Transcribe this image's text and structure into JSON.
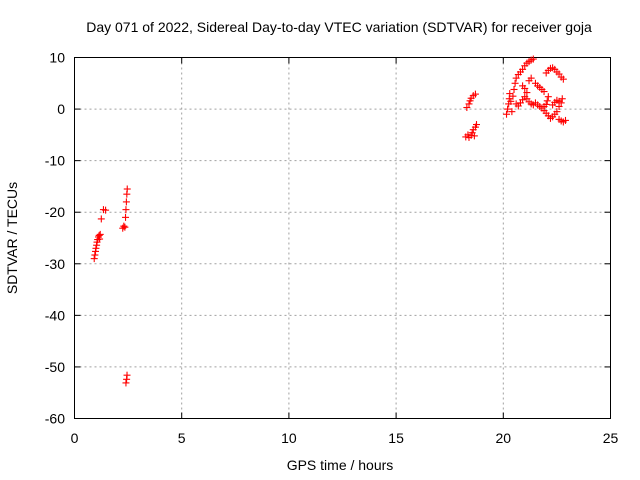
{
  "chart_data": {
    "type": "scatter",
    "title": "Day 071 of 2022, Sidereal Day-to-day VTEC variation (SDTVAR) for receiver goja",
    "xlabel": "GPS time / hours",
    "ylabel": "SDTVAR / TECUs",
    "xlim": [
      0,
      25
    ],
    "ylim": [
      -60,
      10
    ],
    "xticks": [
      0,
      5,
      10,
      15,
      20,
      25
    ],
    "yticks": [
      -60,
      -50,
      -40,
      -30,
      -20,
      -10,
      0,
      10
    ],
    "grid": true,
    "marker": "plus",
    "color": "#ff0000",
    "series": [
      {
        "name": "SDTVAR",
        "points": [
          [
            0.92,
            -29.0
          ],
          [
            0.95,
            -28.3
          ],
          [
            0.98,
            -27.6
          ],
          [
            1.0,
            -27.0
          ],
          [
            1.03,
            -26.4
          ],
          [
            1.05,
            -25.8
          ],
          [
            1.08,
            -25.3
          ],
          [
            1.12,
            -24.8
          ],
          [
            1.15,
            -24.5
          ],
          [
            1.17,
            -25.2
          ],
          [
            1.2,
            -24.3
          ],
          [
            1.25,
            -21.3
          ],
          [
            1.35,
            -19.5
          ],
          [
            1.45,
            -19.6
          ],
          [
            2.25,
            -23.1
          ],
          [
            2.3,
            -22.7
          ],
          [
            2.35,
            -22.9
          ],
          [
            2.38,
            -21.0
          ],
          [
            2.4,
            -19.5
          ],
          [
            2.42,
            -18.0
          ],
          [
            2.44,
            -16.5
          ],
          [
            2.46,
            -15.5
          ],
          [
            2.4,
            -53.1
          ],
          [
            2.43,
            -52.4
          ],
          [
            2.45,
            -51.6
          ],
          [
            18.25,
            -5.4
          ],
          [
            18.35,
            -5.0
          ],
          [
            18.4,
            -5.5
          ],
          [
            18.5,
            -5.1
          ],
          [
            18.55,
            -4.6
          ],
          [
            18.6,
            -4.0
          ],
          [
            18.65,
            -5.2
          ],
          [
            18.7,
            -3.5
          ],
          [
            18.75,
            -3.0
          ],
          [
            18.3,
            0.3
          ],
          [
            18.4,
            1.0
          ],
          [
            18.45,
            1.6
          ],
          [
            18.5,
            2.1
          ],
          [
            18.6,
            2.6
          ],
          [
            18.7,
            2.9
          ],
          [
            20.15,
            -1.0
          ],
          [
            20.2,
            0.0
          ],
          [
            20.25,
            1.0
          ],
          [
            20.28,
            2.0
          ],
          [
            20.3,
            3.0
          ],
          [
            20.35,
            1.5
          ],
          [
            20.4,
            -0.5
          ],
          [
            20.45,
            2.5
          ],
          [
            20.5,
            3.8
          ],
          [
            20.55,
            5.0
          ],
          [
            20.6,
            6.0
          ],
          [
            20.7,
            6.7
          ],
          [
            20.8,
            7.2
          ],
          [
            20.9,
            7.7
          ],
          [
            21.0,
            8.4
          ],
          [
            21.1,
            8.9
          ],
          [
            21.2,
            9.2
          ],
          [
            21.3,
            9.5
          ],
          [
            21.4,
            9.7
          ],
          [
            20.6,
            1.0
          ],
          [
            20.7,
            0.6
          ],
          [
            20.8,
            1.2
          ],
          [
            20.9,
            1.8
          ],
          [
            21.0,
            2.4
          ],
          [
            21.1,
            2.0
          ],
          [
            21.2,
            1.4
          ],
          [
            21.3,
            1.0
          ],
          [
            21.4,
            0.8
          ],
          [
            20.9,
            4.5
          ],
          [
            21.0,
            4.0
          ],
          [
            21.1,
            3.2
          ],
          [
            21.2,
            5.5
          ],
          [
            21.3,
            6.0
          ],
          [
            21.5,
            5.0
          ],
          [
            21.6,
            4.5
          ],
          [
            21.7,
            4.2
          ],
          [
            21.8,
            3.8
          ],
          [
            21.9,
            3.4
          ],
          [
            21.5,
            1.2
          ],
          [
            21.6,
            0.8
          ],
          [
            21.7,
            0.5
          ],
          [
            21.8,
            0.2
          ],
          [
            21.9,
            0.5
          ],
          [
            22.0,
            0.9
          ],
          [
            22.05,
            1.6
          ],
          [
            22.1,
            2.4
          ],
          [
            22.0,
            7.0
          ],
          [
            22.1,
            7.5
          ],
          [
            22.2,
            7.9
          ],
          [
            22.3,
            8.0
          ],
          [
            22.4,
            7.7
          ],
          [
            22.5,
            7.2
          ],
          [
            22.6,
            6.8
          ],
          [
            22.7,
            6.2
          ],
          [
            22.8,
            5.8
          ],
          [
            21.9,
            -0.3
          ],
          [
            22.0,
            -0.8
          ],
          [
            22.1,
            -1.3
          ],
          [
            22.2,
            -1.8
          ],
          [
            22.3,
            -1.5
          ],
          [
            22.4,
            -1.0
          ],
          [
            22.5,
            -0.5
          ],
          [
            22.6,
            0.5
          ],
          [
            22.7,
            1.2
          ],
          [
            22.75,
            2.0
          ],
          [
            22.6,
            -2.0
          ],
          [
            22.7,
            -2.3
          ],
          [
            22.8,
            -2.5
          ],
          [
            22.9,
            -2.2
          ],
          [
            22.3,
            0.8
          ],
          [
            22.4,
            1.3
          ],
          [
            22.5,
            1.7
          ],
          [
            22.6,
            1.5
          ]
        ]
      }
    ]
  }
}
